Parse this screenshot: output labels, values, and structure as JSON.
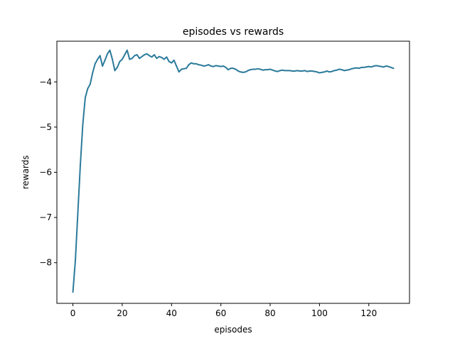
{
  "chart_data": {
    "type": "line",
    "title": "episodes vs rewards",
    "xlabel": "episodes",
    "ylabel": "rewards",
    "xlim": [
      -6.5,
      136.5
    ],
    "ylim": [
      -8.9,
      -3.1
    ],
    "xticks": [
      0,
      20,
      40,
      60,
      80,
      100,
      120
    ],
    "yticks": [
      -8,
      -7,
      -6,
      -5,
      -4
    ],
    "ytick_labels": [
      "−8",
      "−7",
      "−6",
      "−5",
      "−4"
    ],
    "grid": false,
    "series": [
      {
        "color": "#2b7a9b",
        "x": [
          0,
          1,
          2,
          3,
          4,
          5,
          6,
          7,
          8,
          9,
          10,
          11,
          12,
          13,
          14,
          15,
          16,
          17,
          18,
          19,
          20,
          21,
          22,
          23,
          24,
          25,
          26,
          27,
          28,
          29,
          30,
          31,
          32,
          33,
          34,
          35,
          36,
          37,
          38,
          39,
          40,
          41,
          42,
          43,
          44,
          45,
          46,
          47,
          48,
          49,
          50,
          51,
          52,
          53,
          54,
          55,
          56,
          57,
          58,
          59,
          60,
          61,
          62,
          63,
          64,
          65,
          66,
          67,
          68,
          69,
          70,
          71,
          72,
          73,
          74,
          75,
          76,
          77,
          78,
          79,
          80,
          81,
          82,
          83,
          84,
          85,
          86,
          87,
          88,
          89,
          90,
          91,
          92,
          93,
          94,
          95,
          96,
          97,
          98,
          99,
          100,
          101,
          102,
          103,
          104,
          105,
          106,
          107,
          108,
          109,
          110,
          111,
          112,
          113,
          114,
          115,
          116,
          117,
          118,
          119,
          120,
          121,
          122,
          123,
          124,
          125,
          126,
          127,
          128,
          129,
          130
        ],
        "y": [
          -8.65,
          -7.95,
          -6.9,
          -5.85,
          -4.95,
          -4.35,
          -4.15,
          -4.05,
          -3.8,
          -3.6,
          -3.5,
          -3.42,
          -3.65,
          -3.52,
          -3.38,
          -3.3,
          -3.5,
          -3.75,
          -3.68,
          -3.55,
          -3.5,
          -3.4,
          -3.3,
          -3.5,
          -3.48,
          -3.42,
          -3.4,
          -3.48,
          -3.44,
          -3.4,
          -3.38,
          -3.42,
          -3.45,
          -3.4,
          -3.48,
          -3.44,
          -3.46,
          -3.5,
          -3.45,
          -3.55,
          -3.58,
          -3.52,
          -3.65,
          -3.78,
          -3.72,
          -3.71,
          -3.7,
          -3.62,
          -3.58,
          -3.6,
          -3.6,
          -3.62,
          -3.63,
          -3.65,
          -3.64,
          -3.62,
          -3.65,
          -3.66,
          -3.64,
          -3.65,
          -3.66,
          -3.65,
          -3.68,
          -3.73,
          -3.7,
          -3.7,
          -3.72,
          -3.76,
          -3.78,
          -3.79,
          -3.78,
          -3.75,
          -3.73,
          -3.72,
          -3.72,
          -3.71,
          -3.72,
          -3.74,
          -3.73,
          -3.73,
          -3.72,
          -3.74,
          -3.76,
          -3.77,
          -3.75,
          -3.74,
          -3.75,
          -3.75,
          -3.75,
          -3.76,
          -3.76,
          -3.75,
          -3.76,
          -3.76,
          -3.75,
          -3.77,
          -3.76,
          -3.76,
          -3.77,
          -3.78,
          -3.8,
          -3.79,
          -3.78,
          -3.76,
          -3.78,
          -3.77,
          -3.75,
          -3.74,
          -3.72,
          -3.73,
          -3.75,
          -3.74,
          -3.73,
          -3.71,
          -3.7,
          -3.69,
          -3.7,
          -3.68,
          -3.68,
          -3.67,
          -3.66,
          -3.67,
          -3.65,
          -3.64,
          -3.65,
          -3.66,
          -3.67,
          -3.65,
          -3.66,
          -3.68,
          -3.7
        ]
      }
    ]
  }
}
